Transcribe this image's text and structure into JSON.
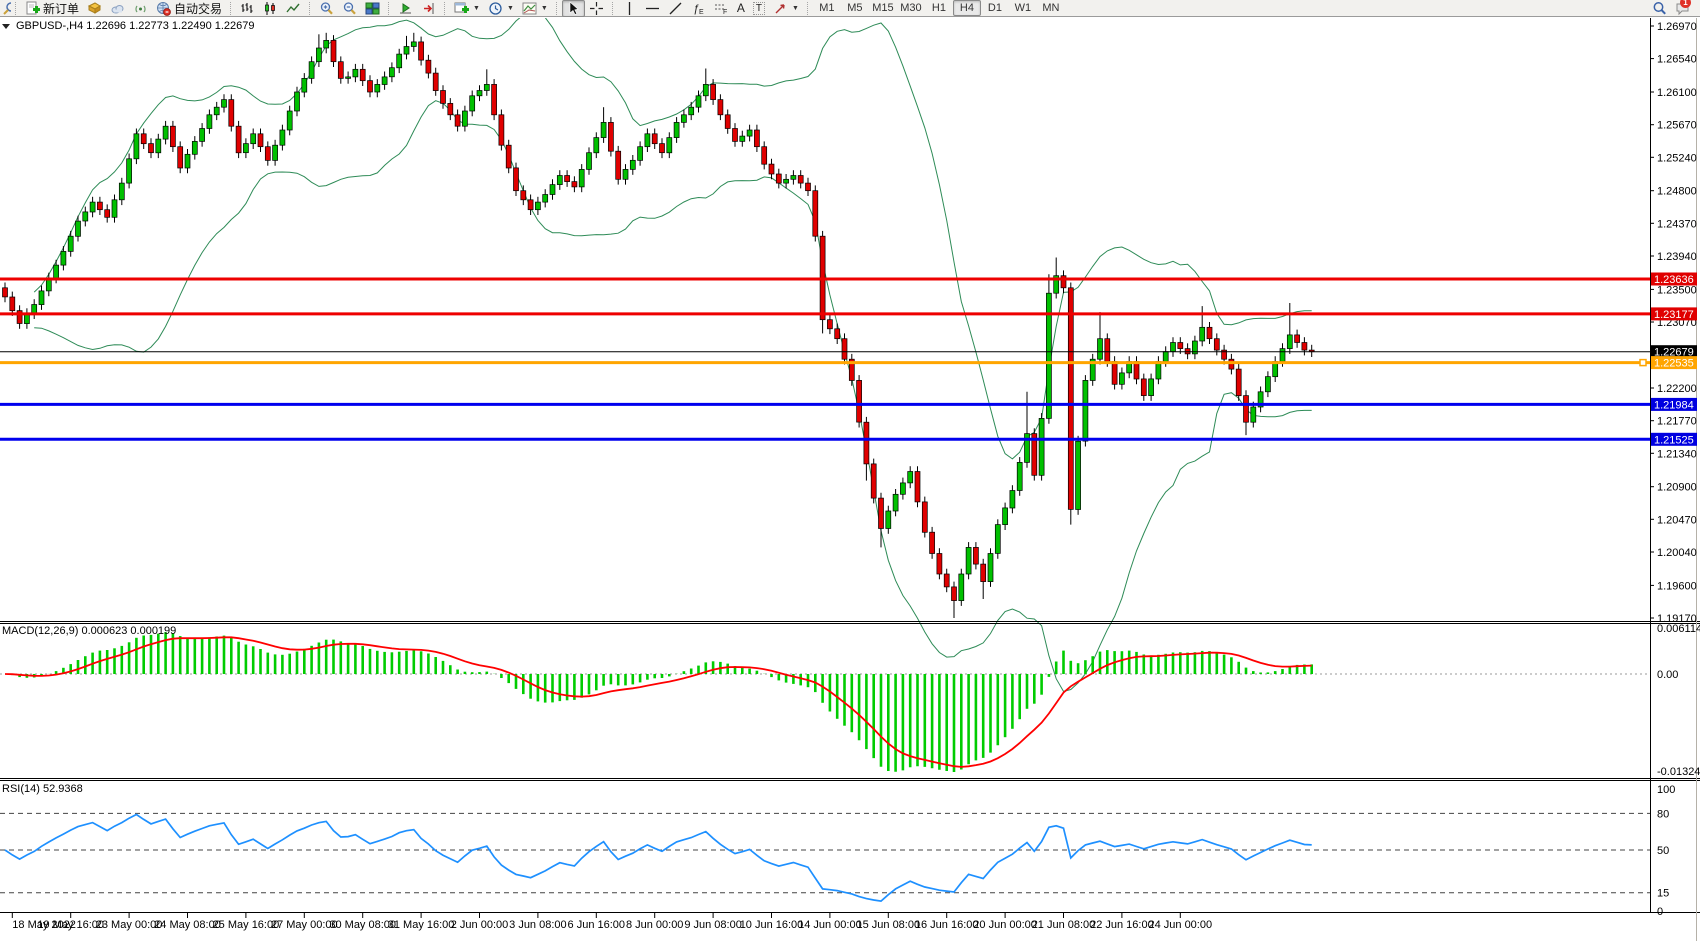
{
  "toolbar": {
    "new_order_label": "新订单",
    "autotrading_label": "自动交易",
    "text_tool_label": "A",
    "label_tool_label": "T",
    "fibo_e_label": "E",
    "fibo_f_label": "F",
    "timeframes": [
      "M1",
      "M5",
      "M15",
      "M30",
      "H1",
      "H4",
      "D1",
      "W1",
      "MN"
    ],
    "active_timeframe": "H4",
    "notification_count": "1"
  },
  "labels": {
    "symbol_line": "GBPUSD-,H4  1.22696 1.22773 1.22490 1.22679",
    "macd_line": "MACD(12,26,9) 0.000623 0.000199",
    "rsi_line": "RSI(14) 52.9368"
  },
  "chart_data": {
    "type": "candlestick",
    "symbol": "GBPUSD-",
    "period": "H4",
    "quote": {
      "open": "1.22696",
      "high": "1.22773",
      "low": "1.22490",
      "close": "1.22679"
    },
    "price_axis": {
      "max_price": 1.2697,
      "min_price": 1.1917,
      "ticks": [
        "1.26970",
        "1.26540",
        "1.26100",
        "1.25670",
        "1.25240",
        "1.24800",
        "1.24370",
        "1.23940",
        "1.23500",
        "1.23070",
        "1.22200",
        "1.21770",
        "1.21340",
        "1.20900",
        "1.20470",
        "1.20040",
        "1.19600",
        "1.19170"
      ]
    },
    "x_labels": [
      "18 May 2022",
      "19 May 16:00",
      "23 May 00:00",
      "24 May 08:00",
      "25 May 16:00",
      "27 May 00:00",
      "30 May 08:00",
      "31 May 16:00",
      "2 Jun 00:00",
      "3 Jun 08:00",
      "6 Jun 16:00",
      "8 Jun 00:00",
      "9 Jun 08:00",
      "10 Jun 16:00",
      "14 Jun 00:00",
      "15 Jun 08:00",
      "16 Jun 16:00",
      "20 Jun 00:00",
      "21 Jun 08:00",
      "22 Jun 16:00",
      "24 Jun 00:00"
    ],
    "bars_per_label": 8,
    "first_open": 1.2352,
    "default_wick": 0.0007,
    "closes": [
      1.234,
      1.2322,
      1.2305,
      1.2318,
      1.233,
      1.2348,
      1.2365,
      1.2382,
      1.24,
      1.242,
      1.244,
      1.2452,
      1.2465,
      1.2455,
      1.2445,
      1.2468,
      1.249,
      1.2522,
      1.2555,
      1.2542,
      1.253,
      1.2548,
      1.2565,
      1.2538,
      1.251,
      1.2528,
      1.2545,
      1.2562,
      1.258,
      1.259,
      1.26,
      1.2565,
      1.253,
      1.2542,
      1.2555,
      1.2538,
      1.252,
      1.254,
      1.256,
      1.2585,
      1.261,
      1.2628,
      1.265,
      1.2668,
      1.2678,
      1.265,
      1.2628,
      1.263,
      1.264,
      1.2625,
      1.261,
      1.262,
      1.263,
      1.2642,
      1.266,
      1.267,
      1.2676,
      1.2652,
      1.2635,
      1.2612,
      1.2595,
      1.258,
      1.2565,
      1.2585,
      1.2605,
      1.2612,
      1.262,
      1.258,
      1.254,
      1.251,
      1.248,
      1.2468,
      1.2455,
      1.2465,
      1.2475,
      1.2488,
      1.25,
      1.2492,
      1.2485,
      1.2508,
      1.253,
      1.255,
      1.257,
      1.2532,
      1.2495,
      1.2508,
      1.252,
      1.2538,
      1.2555,
      1.2542,
      1.253,
      1.255,
      1.257,
      1.258,
      1.259,
      1.2605,
      1.262,
      1.26,
      1.258,
      1.2562,
      1.2545,
      1.2552,
      1.256,
      1.2538,
      1.2515,
      1.2502,
      1.249,
      1.2495,
      1.25,
      1.249,
      1.248,
      1.242,
      1.231,
      1.2298,
      1.2285,
      1.2258,
      1.223,
      1.2175,
      1.212,
      1.2075,
      1.2035,
      1.2058,
      1.208,
      1.2095,
      1.211,
      1.207,
      1.203,
      1.2002,
      1.1975,
      1.1958,
      1.194,
      1.1975,
      1.201,
      1.1988,
      1.1965,
      1.2002,
      1.204,
      1.2062,
      1.2085,
      1.2122,
      1.216,
      1.2105,
      1.218,
      1.2345,
      1.2368,
      1.2352,
      1.206,
      1.215,
      1.223,
      1.2258,
      1.2285,
      1.2255,
      1.2225,
      1.224,
      1.2255,
      1.2232,
      1.221,
      1.2232,
      1.2255,
      1.2268,
      1.228,
      1.2272,
      1.2265,
      1.2282,
      1.23,
      1.2285,
      1.227,
      1.2258,
      1.2245,
      1.221,
      1.2175,
      1.2195,
      1.2215,
      1.2235,
      1.2255,
      1.2272,
      1.229,
      1.228,
      1.227,
      1.22679
    ],
    "wick_overrides": {
      "43": {
        "h": 1.2686
      },
      "44": {
        "h": 1.2688
      },
      "55": {
        "h": 1.2684
      },
      "56": {
        "h": 1.2688
      },
      "66": {
        "h": 1.264
      },
      "82": {
        "h": 1.259
      },
      "96": {
        "h": 1.2641
      },
      "112": {
        "l": 1.2292
      },
      "118": {
        "l": 1.2098
      },
      "120": {
        "l": 1.201
      },
      "130": {
        "l": 1.1917
      },
      "134": {
        "l": 1.1942
      },
      "140": {
        "h": 1.2215
      },
      "143": {
        "h": 1.237
      },
      "144": {
        "h": 1.2392
      },
      "146": {
        "l": 1.204
      },
      "150": {
        "h": 1.232
      },
      "164": {
        "h": 1.2328
      },
      "170": {
        "l": 1.2158
      },
      "176": {
        "h": 1.2332
      }
    },
    "horizontal_lines": [
      {
        "price": 1.23636,
        "color": "#ee0000",
        "width": 3,
        "badge": "#e00000"
      },
      {
        "price": 1.23177,
        "color": "#ee0000",
        "width": 3,
        "badge": "#e00000"
      },
      {
        "price": 1.22679,
        "color": "#000000",
        "width": 1,
        "badge": "#000000"
      },
      {
        "price": 1.22535,
        "color": "#ffa500",
        "width": 3,
        "badge": "#ffa500",
        "handle": true
      },
      {
        "price": 1.21984,
        "color": "#0000ee",
        "width": 3,
        "badge": "#0000e0"
      },
      {
        "price": 1.21525,
        "color": "#0000ee",
        "width": 3,
        "badge": "#0000e0"
      }
    ],
    "indicators": {
      "bollinger": {
        "period": 20,
        "deviation": 2,
        "color": "#2e8b57"
      },
      "macd": {
        "fast": 12,
        "slow": 26,
        "signal": 9,
        "axis_top": "0.006114",
        "axis_zero": "0.00",
        "axis_bottom": "-0.013241",
        "hist_color": "#00cc00",
        "signal_color": "#ff0000"
      },
      "rsi": {
        "period": 14,
        "levels": [
          80,
          50,
          15
        ],
        "axis": [
          "100",
          "80",
          "50",
          "15",
          "0"
        ],
        "color": "#1e90ff"
      }
    },
    "colors": {
      "up": "#00c000",
      "down": "#e00000",
      "wick": "#000000"
    }
  }
}
